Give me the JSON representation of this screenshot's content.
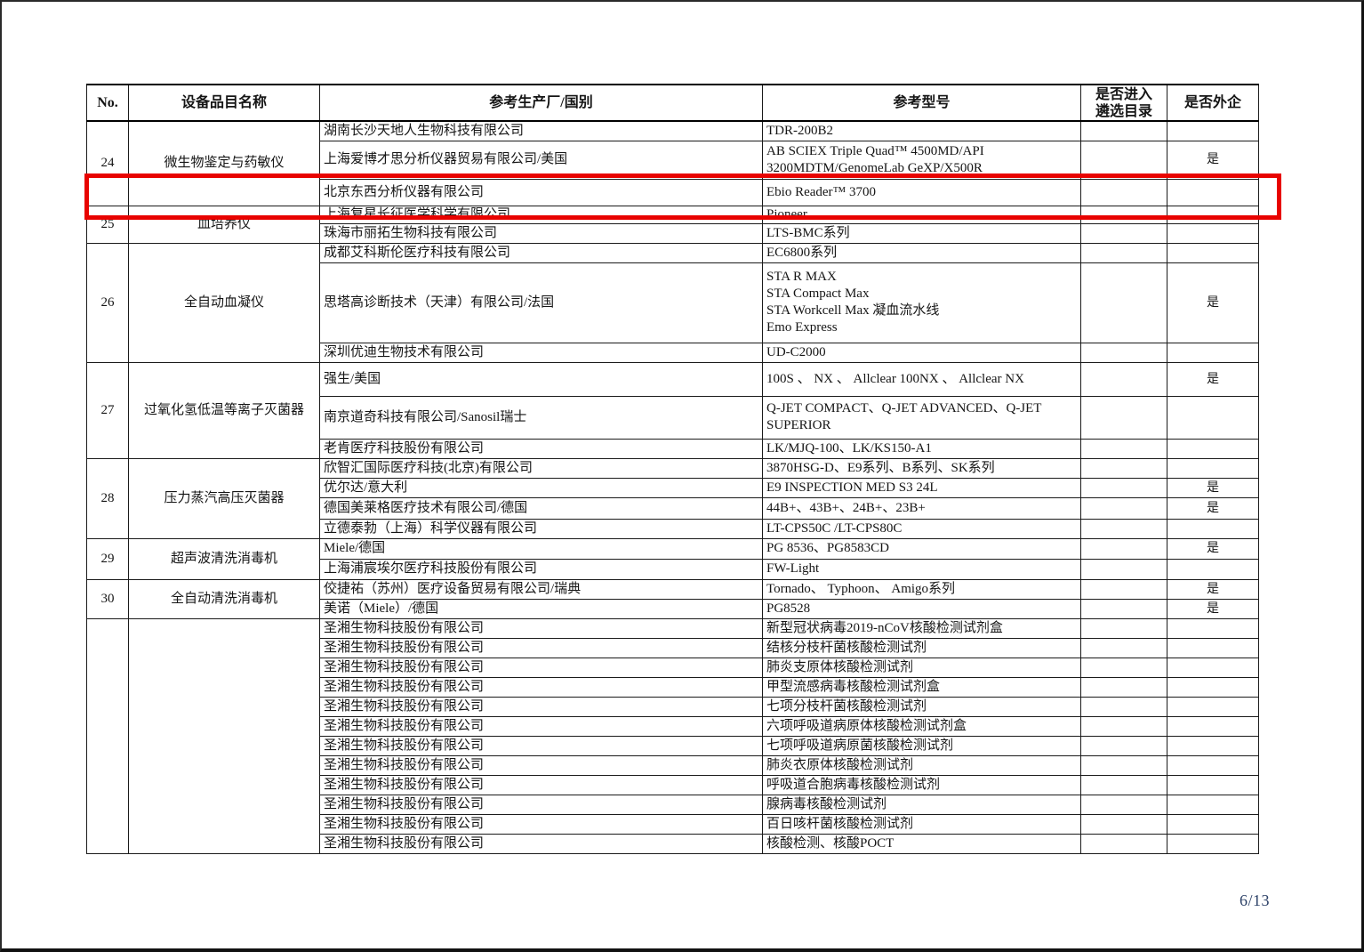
{
  "page_number": "6/13",
  "header": {
    "no": "No.",
    "name": "设备品目名称",
    "mfr": "参考生产厂/国别",
    "model": "参考型号",
    "catalog": "是否进入\n遴选目录",
    "foreign": "是否外企"
  },
  "highlight_color": "#e80300",
  "groups": [
    {
      "no": "24",
      "name": "微生物鉴定与药敏仪",
      "rows": [
        {
          "mfr": "湖南长沙天地人生物科技有限公司",
          "model": "TDR-200B2"
        },
        {
          "mfr": "上海爱博才思分析仪器贸易有限公司/美国",
          "model": "AB SCIEX Triple Quad™ 4500MD/API\n3200MDTM/GenomeLab GeXP/X500R",
          "foreign": "是"
        },
        {
          "mfr": "北京东西分析仪器有限公司",
          "model": "Ebio Reader™ 3700",
          "highlighted": true
        }
      ]
    },
    {
      "no": "25",
      "name": "血培养仪",
      "rows": [
        {
          "mfr": "上海复星长征医学科学有限公司",
          "model": "Pioneer"
        },
        {
          "mfr": "珠海市丽拓生物科技有限公司",
          "model": "LTS-BMC系列"
        }
      ]
    },
    {
      "no": "26",
      "name": "全自动血凝仪",
      "rows": [
        {
          "mfr": "成都艾科斯伦医疗科技有限公司",
          "model": "EC6800系列"
        },
        {
          "mfr": "思塔高诊断技术（天津）有限公司/法国",
          "model": "STA R MAX\nSTA Compact Max\nSTA Workcell Max 凝血流水线\nEmo Express",
          "foreign": "是"
        },
        {
          "mfr": "深圳优迪生物技术有限公司",
          "model": "UD-C2000"
        }
      ]
    },
    {
      "no": "27",
      "name": "过氧化氢低温等离子灭菌器",
      "rows": [
        {
          "mfr": "强生/美国",
          "model": "100S 、 NX 、 Allclear 100NX 、 Allclear NX",
          "foreign": "是"
        },
        {
          "mfr": "南京道奇科技有限公司/Sanosil瑞士",
          "model": "Q-JET COMPACT、Q-JET ADVANCED、Q-JET SUPERIOR"
        },
        {
          "mfr": "老肯医疗科技股份有限公司",
          "model": "LK/MJQ-100、LK/KS150-A1"
        }
      ]
    },
    {
      "no": "28",
      "name": "压力蒸汽高压灭菌器",
      "rows": [
        {
          "mfr": "欣智汇国际医疗科技(北京)有限公司",
          "model": "3870HSG-D、E9系列、B系列、SK系列"
        },
        {
          "mfr": "优尔达/意大利",
          "model": "E9 INSPECTION MED S3 24L",
          "foreign": "是"
        },
        {
          "mfr": "德国美莱格医疗技术有限公司/德国",
          "model": "44B+、43B+、24B+、23B+",
          "foreign": "是"
        },
        {
          "mfr": "立德泰勃（上海）科学仪器有限公司",
          "model": "LT-CPS50C /LT-CPS80C"
        }
      ]
    },
    {
      "no": "29",
      "name": "超声波清洗消毒机",
      "rows": [
        {
          "mfr": "Miele/德国",
          "model": "PG 8536、PG8583CD",
          "foreign": "是"
        },
        {
          "mfr": "上海浦宸埃尔医疗科技股份有限公司",
          "model": "FW-Light"
        }
      ]
    },
    {
      "no": "30",
      "name": "全自动清洗消毒机",
      "rows": [
        {
          "mfr": "佼捷祐（苏州）医疗设备贸易有限公司/瑞典",
          "model": "Tornado、 Typhoon、 Amigo系列",
          "foreign": "是"
        },
        {
          "mfr": "美诺（Miele）/德国",
          "model": "PG8528",
          "foreign": "是"
        }
      ]
    },
    {
      "no": "",
      "name": "",
      "rows": [
        {
          "mfr": "圣湘生物科技股份有限公司",
          "model": "新型冠状病毒2019-nCoV核酸检测试剂盒"
        },
        {
          "mfr": "圣湘生物科技股份有限公司",
          "model": "结核分枝杆菌核酸检测试剂"
        },
        {
          "mfr": "圣湘生物科技股份有限公司",
          "model": "肺炎支原体核酸检测试剂"
        },
        {
          "mfr": "圣湘生物科技股份有限公司",
          "model": "甲型流感病毒核酸检测试剂盒"
        },
        {
          "mfr": "圣湘生物科技股份有限公司",
          "model": "七项分枝杆菌核酸检测试剂"
        },
        {
          "mfr": "圣湘生物科技股份有限公司",
          "model": "六项呼吸道病原体核酸检测试剂盒"
        },
        {
          "mfr": "圣湘生物科技股份有限公司",
          "model": "七项呼吸道病原菌核酸检测试剂"
        },
        {
          "mfr": "圣湘生物科技股份有限公司",
          "model": "肺炎衣原体核酸检测试剂"
        },
        {
          "mfr": "圣湘生物科技股份有限公司",
          "model": "呼吸道合胞病毒核酸检测试剂"
        },
        {
          "mfr": "圣湘生物科技股份有限公司",
          "model": "腺病毒核酸检测试剂"
        },
        {
          "mfr": "圣湘生物科技股份有限公司",
          "model": "百日咳杆菌核酸检测试剂"
        },
        {
          "mfr": "圣湘生物科技股份有限公司",
          "model": "核酸检测、核酸POCT"
        }
      ]
    }
  ]
}
